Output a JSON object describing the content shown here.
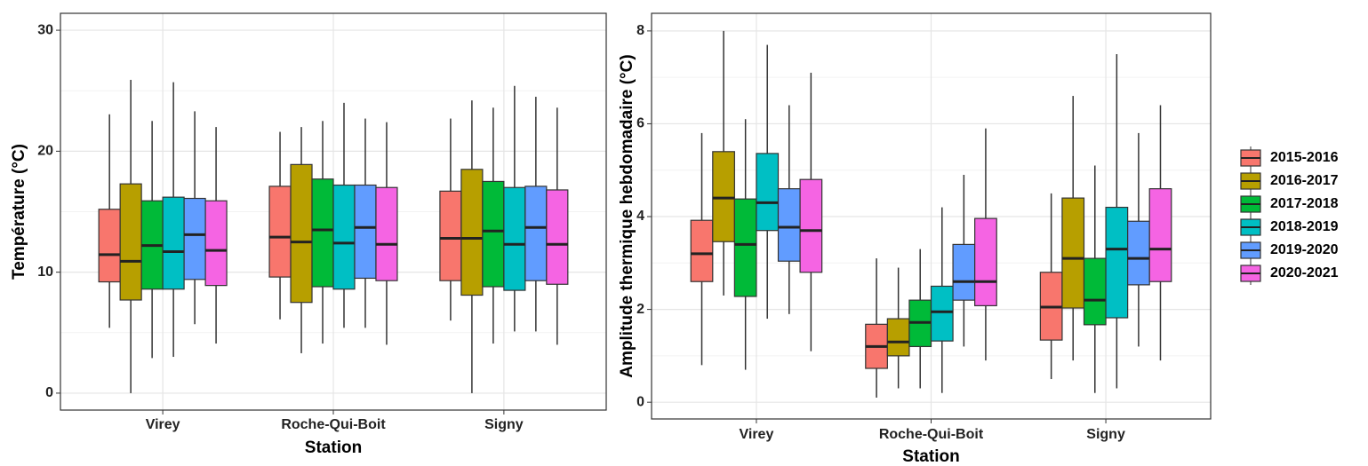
{
  "chart_data": [
    {
      "type": "box",
      "ylabel": "Température (°C)",
      "xlabel": "Station",
      "categories": [
        "Virey",
        "Roche-Qui-Boit",
        "Signy"
      ],
      "ylim": [
        -1.4,
        31.4
      ],
      "yticks": [
        0,
        10,
        20,
        30
      ],
      "grid": true,
      "series": [
        {
          "color": "#f8766d",
          "low": [
            5.4,
            6.1,
            6.0
          ],
          "q1": [
            9.2,
            9.6,
            9.3
          ],
          "median": [
            11.45,
            12.9,
            12.8
          ],
          "q3": [
            15.2,
            17.1,
            16.7
          ],
          "high": [
            23.05,
            21.6,
            22.7
          ]
        },
        {
          "color": "#b79f00",
          "low": [
            0,
            3.3,
            0
          ],
          "q1": [
            7.7,
            7.5,
            8.1
          ],
          "median": [
            10.9,
            12.5,
            12.8
          ],
          "q3": [
            17.3,
            18.9,
            18.5
          ],
          "high": [
            25.9,
            22.0,
            24.2
          ]
        },
        {
          "color": "#00ba38",
          "low": [
            2.9,
            4.1,
            4.1
          ],
          "q1": [
            8.6,
            8.8,
            8.8
          ],
          "median": [
            12.2,
            13.5,
            13.4
          ],
          "q3": [
            15.9,
            17.7,
            17.5
          ],
          "high": [
            22.5,
            22.5,
            23.6
          ]
        },
        {
          "color": "#00bfc4",
          "low": [
            3.0,
            5.4,
            5.1
          ],
          "q1": [
            8.6,
            8.6,
            8.5
          ],
          "median": [
            11.7,
            12.4,
            12.3
          ],
          "q3": [
            16.2,
            17.2,
            17.0
          ],
          "high": [
            25.7,
            24.0,
            25.4
          ]
        },
        {
          "color": "#619cff",
          "low": [
            5.7,
            5.4,
            5.1
          ],
          "q1": [
            9.4,
            9.5,
            9.3
          ],
          "median": [
            13.1,
            13.7,
            13.7
          ],
          "q3": [
            16.1,
            17.2,
            17.1
          ],
          "high": [
            23.3,
            22.7,
            24.5
          ]
        },
        {
          "color": "#f564e3",
          "low": [
            4.1,
            4.0,
            4.0
          ],
          "q1": [
            8.9,
            9.3,
            9.0
          ],
          "median": [
            11.8,
            12.3,
            12.3
          ],
          "q3": [
            15.9,
            17.0,
            16.8
          ],
          "high": [
            22.0,
            22.4,
            23.6
          ]
        }
      ]
    },
    {
      "type": "box",
      "ylabel": "Amplitude thermique hebdomadaire (°C)",
      "xlabel": "Station",
      "categories": [
        "Virey",
        "Roche-Qui-Boit",
        "Signy"
      ],
      "ylim": [
        -0.36,
        8.38
      ],
      "yticks": [
        0,
        2,
        4,
        6,
        8
      ],
      "grid": true,
      "series": [
        {
          "name": "2015-2016",
          "color": "#f8766d",
          "low": [
            0.8,
            0.1,
            0.5
          ],
          "q1": [
            2.6,
            0.73,
            1.34
          ],
          "median": [
            3.2,
            1.2,
            2.05
          ],
          "q3": [
            3.92,
            1.68,
            2.8
          ],
          "high": [
            5.8,
            3.1,
            4.5
          ]
        },
        {
          "name": "2016-2017",
          "color": "#b79f00",
          "low": [
            2.3,
            0.3,
            0.9
          ],
          "q1": [
            3.46,
            1.0,
            2.03
          ],
          "median": [
            4.4,
            1.3,
            3.1
          ],
          "q3": [
            5.4,
            1.8,
            4.4
          ],
          "high": [
            8.0,
            2.9,
            6.6
          ]
        },
        {
          "name": "2017-2018",
          "color": "#00ba38",
          "low": [
            0.7,
            0.3,
            0.2
          ],
          "q1": [
            2.28,
            1.2,
            1.67
          ],
          "median": [
            3.4,
            1.72,
            2.2
          ],
          "q3": [
            4.38,
            2.2,
            3.1
          ],
          "high": [
            6.1,
            3.3,
            5.1
          ]
        },
        {
          "name": "2018-2019",
          "color": "#00bfc4",
          "low": [
            1.8,
            0.2,
            0.3
          ],
          "q1": [
            3.7,
            1.32,
            1.82
          ],
          "median": [
            4.3,
            1.95,
            3.3
          ],
          "q3": [
            5.36,
            2.5,
            4.2
          ],
          "high": [
            7.7,
            4.2,
            7.5
          ]
        },
        {
          "name": "2019-2020",
          "color": "#619cff",
          "low": [
            1.9,
            1.2,
            1.2
          ],
          "q1": [
            3.04,
            2.2,
            2.53
          ],
          "median": [
            3.77,
            2.6,
            3.1
          ],
          "q3": [
            4.6,
            3.4,
            3.9
          ],
          "high": [
            6.4,
            4.9,
            5.8
          ]
        },
        {
          "name": "2020-2021",
          "color": "#f564e3",
          "low": [
            1.1,
            0.9,
            0.9
          ],
          "q1": [
            2.8,
            2.08,
            2.6
          ],
          "median": [
            3.7,
            2.6,
            3.3
          ],
          "q3": [
            4.8,
            3.96,
            4.6
          ],
          "high": [
            7.1,
            5.9,
            6.4
          ]
        }
      ]
    }
  ]
}
